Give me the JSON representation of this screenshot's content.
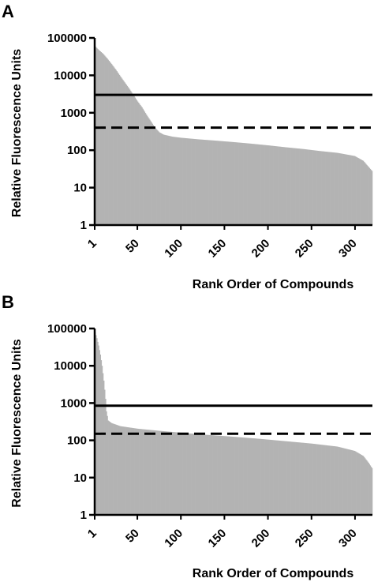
{
  "chart_data": [
    {
      "type": "bar",
      "panel": "A",
      "xlabel": "Rank Order of Compounds",
      "ylabel": "Relative Fluorescence Units",
      "yscale": "log",
      "ylim": [
        1,
        100000
      ],
      "xlim": [
        1,
        320
      ],
      "yticks": [
        {
          "value": 1,
          "label": "1"
        },
        {
          "value": 10,
          "label": "10"
        },
        {
          "value": 100,
          "label": "100"
        },
        {
          "value": 1000,
          "label": "1000"
        },
        {
          "value": 10000,
          "label": "10000"
        },
        {
          "value": 100000,
          "label": "100000"
        }
      ],
      "xticks": [
        {
          "value": 1,
          "label": "1"
        },
        {
          "value": 50,
          "label": "50"
        },
        {
          "value": 100,
          "label": "100"
        },
        {
          "value": 150,
          "label": "150"
        },
        {
          "value": 200,
          "label": "200"
        },
        {
          "value": 250,
          "label": "250"
        },
        {
          "value": 300,
          "label": "300"
        }
      ],
      "fill_color": "#b3b3b3",
      "profile": [
        [
          1,
          60000
        ],
        [
          5,
          48000
        ],
        [
          10,
          38000
        ],
        [
          15,
          28000
        ],
        [
          20,
          20000
        ],
        [
          25,
          14000
        ],
        [
          30,
          9500
        ],
        [
          35,
          6500
        ],
        [
          40,
          4500
        ],
        [
          45,
          3000
        ],
        [
          50,
          2000
        ],
        [
          55,
          1400
        ],
        [
          60,
          900
        ],
        [
          65,
          600
        ],
        [
          70,
          400
        ],
        [
          75,
          300
        ],
        [
          80,
          260
        ],
        [
          90,
          230
        ],
        [
          100,
          215
        ],
        [
          120,
          195
        ],
        [
          140,
          180
        ],
        [
          160,
          165
        ],
        [
          180,
          150
        ],
        [
          200,
          135
        ],
        [
          220,
          120
        ],
        [
          240,
          108
        ],
        [
          260,
          95
        ],
        [
          280,
          85
        ],
        [
          300,
          70
        ],
        [
          310,
          52
        ],
        [
          315,
          38
        ],
        [
          320,
          28
        ]
      ],
      "reference_lines": [
        {
          "style": "solid",
          "y": 3000
        },
        {
          "style": "dashed",
          "y": 400
        }
      ]
    },
    {
      "type": "bar",
      "panel": "B",
      "xlabel": "Rank Order of Compounds",
      "ylabel": "Relative Fluorescence Units",
      "yscale": "log",
      "ylim": [
        1,
        100000
      ],
      "xlim": [
        1,
        320
      ],
      "yticks": [
        {
          "value": 1,
          "label": "1"
        },
        {
          "value": 10,
          "label": "10"
        },
        {
          "value": 100,
          "label": "100"
        },
        {
          "value": 1000,
          "label": "1000"
        },
        {
          "value": 10000,
          "label": "10000"
        },
        {
          "value": 100000,
          "label": "100000"
        }
      ],
      "xticks": [
        {
          "value": 1,
          "label": "1"
        },
        {
          "value": 50,
          "label": "50"
        },
        {
          "value": 100,
          "label": "100"
        },
        {
          "value": 150,
          "label": "150"
        },
        {
          "value": 200,
          "label": "200"
        },
        {
          "value": 250,
          "label": "250"
        },
        {
          "value": 300,
          "label": "300"
        }
      ],
      "fill_color": "#b3b3b3",
      "profile": [
        [
          1,
          80000
        ],
        [
          3,
          55000
        ],
        [
          5,
          35000
        ],
        [
          7,
          20000
        ],
        [
          9,
          10000
        ],
        [
          11,
          4000
        ],
        [
          13,
          1300
        ],
        [
          14,
          600
        ],
        [
          16,
          340
        ],
        [
          20,
          290
        ],
        [
          30,
          240
        ],
        [
          50,
          205
        ],
        [
          75,
          180
        ],
        [
          100,
          160
        ],
        [
          130,
          140
        ],
        [
          160,
          125
        ],
        [
          190,
          110
        ],
        [
          220,
          95
        ],
        [
          250,
          82
        ],
        [
          280,
          68
        ],
        [
          300,
          52
        ],
        [
          310,
          38
        ],
        [
          316,
          25
        ],
        [
          320,
          18
        ]
      ],
      "reference_lines": [
        {
          "style": "solid",
          "y": 850
        },
        {
          "style": "dashed",
          "y": 150
        }
      ]
    }
  ]
}
